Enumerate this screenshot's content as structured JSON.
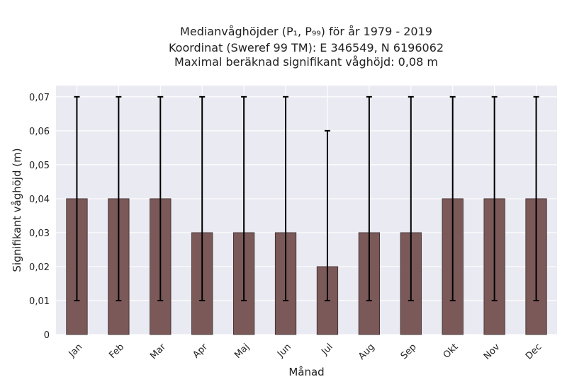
{
  "chart_data": {
    "type": "bar",
    "title_lines": [
      "Medianvåghöjder (P₁, P₉₉) för år 1979 - 2019",
      "Koordinat (Sweref 99 TM): E 346549, N 6196062",
      "Maximal beräknad signifikant våghöjd: 0,08 m"
    ],
    "xlabel": "Månad",
    "ylabel": "Signifikant våghöjd (m)",
    "ylim": [
      0,
      0.0733
    ],
    "yticks": [
      0,
      0.01,
      0.02,
      0.03,
      0.04,
      0.05,
      0.06,
      0.07
    ],
    "ytick_labels": [
      "0",
      "0,01",
      "0,02",
      "0,03",
      "0,04",
      "0,05",
      "0,06",
      "0,07"
    ],
    "categories": [
      "Jan",
      "Feb",
      "Mar",
      "Apr",
      "Maj",
      "Jun",
      "Jul",
      "Aug",
      "Sep",
      "Okt",
      "Nov",
      "Dec"
    ],
    "values": [
      0.04,
      0.04,
      0.04,
      0.03,
      0.03,
      0.03,
      0.02,
      0.03,
      0.03,
      0.04,
      0.04,
      0.04
    ],
    "err_low": [
      0.01,
      0.01,
      0.01,
      0.01,
      0.01,
      0.01,
      0.01,
      0.01,
      0.01,
      0.01,
      0.01,
      0.01
    ],
    "err_high": [
      0.07,
      0.07,
      0.07,
      0.07,
      0.07,
      0.07,
      0.06,
      0.07,
      0.07,
      0.07,
      0.07,
      0.07
    ],
    "grid": true,
    "colors": {
      "bar": "#7b5959",
      "bar_edge": "#3a2a2a",
      "error": "#000000",
      "plot_bg": "#eaeaf2",
      "grid": "#ffffff"
    }
  }
}
